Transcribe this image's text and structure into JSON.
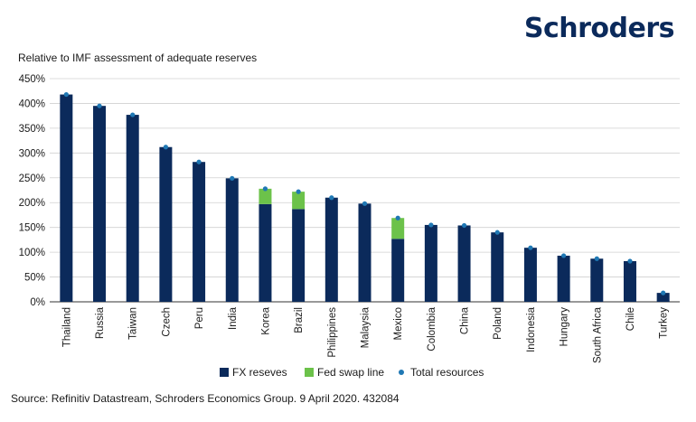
{
  "brand": "Schroders",
  "subtitle": "Relative to IMF assessment of adequate reserves",
  "source": "Source: Refinitiv Datastream, Schroders Economics Group. 9 April 2020. 432084",
  "chart_data": {
    "type": "bar",
    "stacked": true,
    "ylim": [
      0,
      450
    ],
    "ytick_step": 50,
    "ytick_suffix": "%",
    "grid": "horizontal",
    "legend_position": "bottom",
    "categories": [
      "Thailand",
      "Russia",
      "Taiwan",
      "Czech",
      "Peru",
      "India",
      "Korea",
      "Brazil",
      "Philippines",
      "Malaysia",
      "Mexico",
      "Colombia",
      "China",
      "Poland",
      "Indonesia",
      "Hungary",
      "South Africa",
      "Chile",
      "Turkey"
    ],
    "series": [
      {
        "name": "FX reseves",
        "kind": "bar",
        "color": "#0b2a5b",
        "values": [
          418,
          395,
          377,
          312,
          282,
          249,
          197,
          187,
          210,
          198,
          127,
          155,
          154,
          140,
          109,
          93,
          87,
          82,
          18
        ]
      },
      {
        "name": "Fed swap line",
        "kind": "bar",
        "color": "#6cc24a",
        "values": [
          0,
          0,
          0,
          0,
          0,
          0,
          31,
          35,
          0,
          0,
          42,
          0,
          0,
          0,
          0,
          0,
          0,
          0,
          0
        ]
      },
      {
        "name": "Total resources",
        "kind": "point",
        "color": "#1f78b4",
        "values": [
          418,
          395,
          377,
          312,
          282,
          249,
          228,
          222,
          210,
          198,
          169,
          155,
          154,
          140,
          109,
          93,
          87,
          82,
          18
        ]
      }
    ]
  }
}
